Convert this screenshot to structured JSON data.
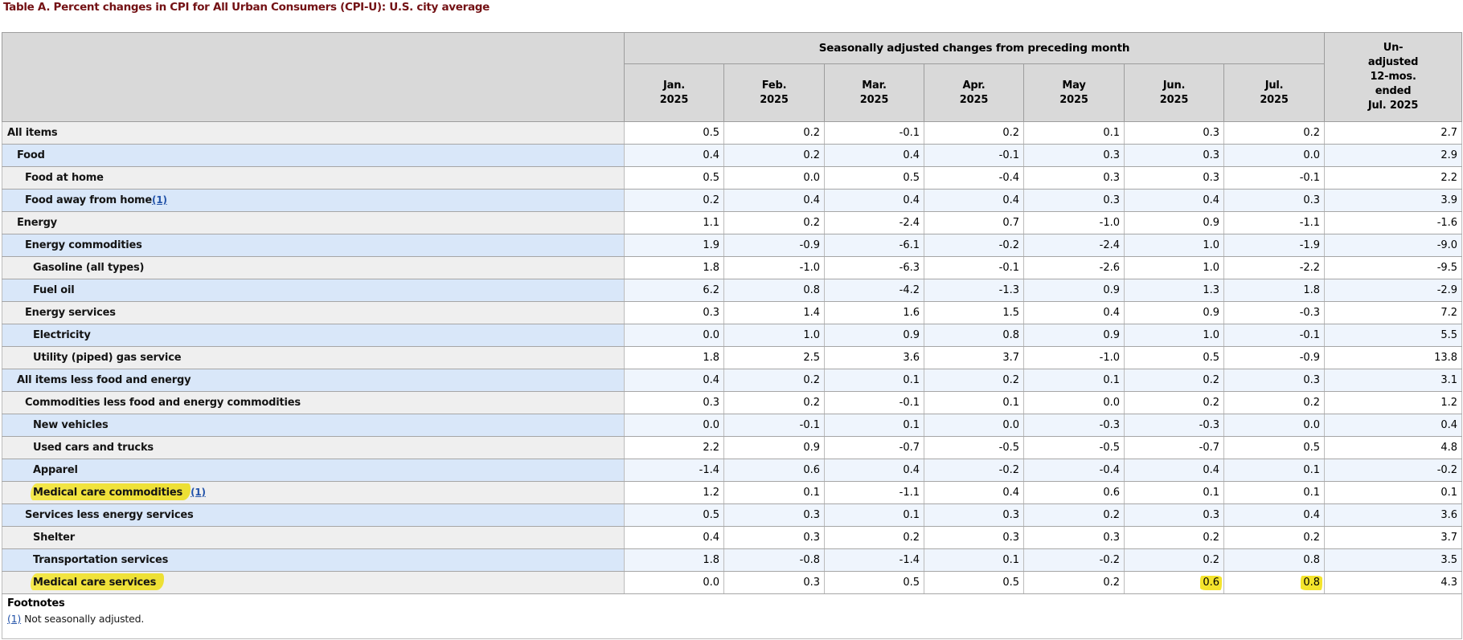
{
  "title": "Table A. Percent changes in CPI for All Urban Consumers (CPI-U): U.S. city average",
  "colors": {
    "title-color": "#731114",
    "header-bg": "#d9d9d9",
    "row-gray-label": "#efefef",
    "row-gray-data": "#ffffff",
    "row-blue-label": "#d9e7f9",
    "row-blue-data": "#eff5fd",
    "highlight": "#f1e33c",
    "link": "#2353a9",
    "border": "#a6a6a6"
  },
  "table": {
    "group_header": "Seasonally adjusted changes from preceding month",
    "unadjusted_header": "Un-\nadjusted\n12-mos.\nended\nJul. 2025",
    "month_headers": [
      "Jan.\n2025",
      "Feb.\n2025",
      "Mar.\n2025",
      "Apr.\n2025",
      "May\n2025",
      "Jun.\n2025",
      "Jul.\n2025"
    ],
    "rows": [
      {
        "label": "All items",
        "indent": 0,
        "footnote": null,
        "label_highlight": false,
        "value_highlights": [],
        "values": [
          "0.5",
          "0.2",
          "-0.1",
          "0.2",
          "0.1",
          "0.3",
          "0.2",
          "2.7"
        ]
      },
      {
        "label": "Food",
        "indent": 1,
        "footnote": null,
        "label_highlight": false,
        "value_highlights": [],
        "values": [
          "0.4",
          "0.2",
          "0.4",
          "-0.1",
          "0.3",
          "0.3",
          "0.0",
          "2.9"
        ]
      },
      {
        "label": "Food at home",
        "indent": 2,
        "footnote": null,
        "label_highlight": false,
        "value_highlights": [],
        "values": [
          "0.5",
          "0.0",
          "0.5",
          "-0.4",
          "0.3",
          "0.3",
          "-0.1",
          "2.2"
        ]
      },
      {
        "label": "Food away from home",
        "indent": 2,
        "footnote": "(1)",
        "label_highlight": false,
        "value_highlights": [],
        "values": [
          "0.2",
          "0.4",
          "0.4",
          "0.4",
          "0.3",
          "0.4",
          "0.3",
          "3.9"
        ]
      },
      {
        "label": "Energy",
        "indent": 1,
        "footnote": null,
        "label_highlight": false,
        "value_highlights": [],
        "values": [
          "1.1",
          "0.2",
          "-2.4",
          "0.7",
          "-1.0",
          "0.9",
          "-1.1",
          "-1.6"
        ]
      },
      {
        "label": "Energy commodities",
        "indent": 2,
        "footnote": null,
        "label_highlight": false,
        "value_highlights": [],
        "values": [
          "1.9",
          "-0.9",
          "-6.1",
          "-0.2",
          "-2.4",
          "1.0",
          "-1.9",
          "-9.0"
        ]
      },
      {
        "label": "Gasoline (all types)",
        "indent": 3,
        "footnote": null,
        "label_highlight": false,
        "value_highlights": [],
        "values": [
          "1.8",
          "-1.0",
          "-6.3",
          "-0.1",
          "-2.6",
          "1.0",
          "-2.2",
          "-9.5"
        ]
      },
      {
        "label": "Fuel oil",
        "indent": 3,
        "footnote": null,
        "label_highlight": false,
        "value_highlights": [],
        "values": [
          "6.2",
          "0.8",
          "-4.2",
          "-1.3",
          "0.9",
          "1.3",
          "1.8",
          "-2.9"
        ]
      },
      {
        "label": "Energy services",
        "indent": 2,
        "footnote": null,
        "label_highlight": false,
        "value_highlights": [],
        "values": [
          "0.3",
          "1.4",
          "1.6",
          "1.5",
          "0.4",
          "0.9",
          "-0.3",
          "7.2"
        ]
      },
      {
        "label": "Electricity",
        "indent": 3,
        "footnote": null,
        "label_highlight": false,
        "value_highlights": [],
        "values": [
          "0.0",
          "1.0",
          "0.9",
          "0.8",
          "0.9",
          "1.0",
          "-0.1",
          "5.5"
        ]
      },
      {
        "label": "Utility (piped) gas service",
        "indent": 3,
        "footnote": null,
        "label_highlight": false,
        "value_highlights": [],
        "values": [
          "1.8",
          "2.5",
          "3.6",
          "3.7",
          "-1.0",
          "0.5",
          "-0.9",
          "13.8"
        ]
      },
      {
        "label": "All items less food and energy",
        "indent": 1,
        "footnote": null,
        "label_highlight": false,
        "value_highlights": [],
        "values": [
          "0.4",
          "0.2",
          "0.1",
          "0.2",
          "0.1",
          "0.2",
          "0.3",
          "3.1"
        ]
      },
      {
        "label": "Commodities less food and energy commodities",
        "indent": 2,
        "footnote": null,
        "label_highlight": false,
        "value_highlights": [],
        "values": [
          "0.3",
          "0.2",
          "-0.1",
          "0.1",
          "0.0",
          "0.2",
          "0.2",
          "1.2"
        ]
      },
      {
        "label": "New vehicles",
        "indent": 3,
        "footnote": null,
        "label_highlight": false,
        "value_highlights": [],
        "values": [
          "0.0",
          "-0.1",
          "0.1",
          "0.0",
          "-0.3",
          "-0.3",
          "0.0",
          "0.4"
        ]
      },
      {
        "label": "Used cars and trucks",
        "indent": 3,
        "footnote": null,
        "label_highlight": false,
        "value_highlights": [],
        "values": [
          "2.2",
          "0.9",
          "-0.7",
          "-0.5",
          "-0.5",
          "-0.7",
          "0.5",
          "4.8"
        ]
      },
      {
        "label": "Apparel",
        "indent": 3,
        "footnote": null,
        "label_highlight": false,
        "value_highlights": [],
        "values": [
          "-1.4",
          "0.6",
          "0.4",
          "-0.2",
          "-0.4",
          "0.4",
          "0.1",
          "-0.2"
        ]
      },
      {
        "label": "Medical care commodities",
        "indent": 3,
        "footnote": "(1)",
        "label_highlight": true,
        "value_highlights": [],
        "values": [
          "1.2",
          "0.1",
          "-1.1",
          "0.4",
          "0.6",
          "0.1",
          "0.1",
          "0.1"
        ]
      },
      {
        "label": "Services less energy services",
        "indent": 2,
        "footnote": null,
        "label_highlight": false,
        "value_highlights": [],
        "values": [
          "0.5",
          "0.3",
          "0.1",
          "0.3",
          "0.2",
          "0.3",
          "0.4",
          "3.6"
        ]
      },
      {
        "label": "Shelter",
        "indent": 3,
        "footnote": null,
        "label_highlight": false,
        "value_highlights": [],
        "values": [
          "0.4",
          "0.3",
          "0.2",
          "0.3",
          "0.3",
          "0.2",
          "0.2",
          "3.7"
        ]
      },
      {
        "label": "Transportation services",
        "indent": 3,
        "footnote": null,
        "label_highlight": false,
        "value_highlights": [],
        "values": [
          "1.8",
          "-0.8",
          "-1.4",
          "0.1",
          "-0.2",
          "0.2",
          "0.8",
          "3.5"
        ]
      },
      {
        "label": "Medical care services",
        "indent": 3,
        "footnote": null,
        "label_highlight": true,
        "value_highlights": [
          5,
          6
        ],
        "values": [
          "0.0",
          "0.3",
          "0.5",
          "0.5",
          "0.2",
          "0.6",
          "0.8",
          "4.3"
        ]
      }
    ]
  },
  "footnotes": {
    "heading": "Footnotes",
    "items": [
      {
        "marker": "(1)",
        "text": "Not seasonally adjusted."
      }
    ]
  }
}
